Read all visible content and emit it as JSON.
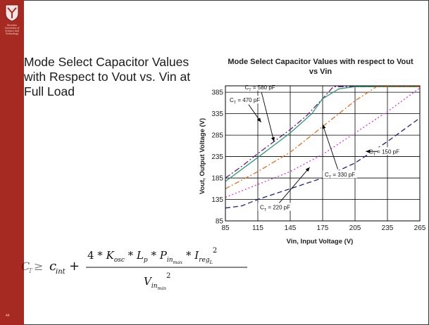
{
  "slide": {
    "heading": "Mode Select Capacitor Values with Respect to Vout vs. Vin at Full Load",
    "slide_number": "44",
    "logo_text": "Wrocław University of Science and Technology"
  },
  "formula": {
    "text": "C_T ≥ c_int + (4 * K_osc * L_p * P_in_max * I_reg_L^2) / V_in_min^2"
  },
  "colors": {
    "sidebar": "#a62a21",
    "grid": "#000000"
  },
  "chart_data": {
    "type": "line",
    "title": "Mode Select Capacitor Values with respect to Vout vs Vin",
    "xlabel": "Vin, Input Voltage (V)",
    "ylabel": "Vout, Output Voltage (V)",
    "xlim": [
      85,
      265
    ],
    "ylim": [
      85,
      400
    ],
    "xticks": [
      85,
      115,
      145,
      175,
      205,
      235,
      265
    ],
    "yticks": [
      85,
      135,
      185,
      235,
      285,
      335,
      385
    ],
    "grid": true,
    "series": [
      {
        "name": "C_T = 580 pF",
        "label_main": "C",
        "label_sub": "T",
        "label_rest": " = 580 pF",
        "color": "#6a1b9a",
        "dash": "8,3,2,3",
        "x": [
          85,
          100,
          115,
          130,
          145,
          160,
          175,
          185,
          205,
          235,
          265
        ],
        "y": [
          185,
          212,
          242,
          270,
          298,
          330,
          370,
          398,
          398,
          398,
          398
        ]
      },
      {
        "name": "C_T = 470 pF",
        "label_main": "C",
        "label_sub": "T",
        "label_rest": " = 470 pF",
        "color": "#2e9a6e",
        "dash": "",
        "x": [
          85,
          115,
          145,
          165,
          175,
          190,
          205,
          235,
          265
        ],
        "y": [
          177,
          233,
          290,
          335,
          370,
          393,
          398,
          398,
          398
        ]
      },
      {
        "name": "C_T = 330 pF",
        "label_main": "C",
        "label_sub": "T",
        "label_rest": " = 330 pF",
        "color": "#e07020",
        "dash": "7,3,2,3",
        "x": [
          85,
          115,
          145,
          175,
          205,
          225,
          245,
          265
        ],
        "y": [
          160,
          200,
          245,
          305,
          365,
          398,
          398,
          398
        ]
      },
      {
        "name": "C_T = 220 pF",
        "label_main": "C",
        "label_sub": "T",
        "label_rest": " = 220 pF",
        "color": "#d33ad3",
        "dash": "2,3",
        "x": [
          85,
          115,
          145,
          175,
          205,
          235,
          265
        ],
        "y": [
          140,
          170,
          200,
          240,
          290,
          340,
          395
        ]
      },
      {
        "name": "C_T = 150 pF",
        "label_main": "C",
        "label_sub": "T",
        "label_rest": " = 150 pF",
        "color": "#1a237e",
        "dash": "7,4",
        "x": [
          85,
          100,
          115,
          145,
          175,
          205,
          235,
          265
        ],
        "y": [
          115,
          120,
          135,
          160,
          185,
          220,
          270,
          325
        ]
      }
    ],
    "annotations": [
      {
        "series": 0,
        "text_x": 117,
        "text_y": 397,
        "arrow_x": 130,
        "arrow_y": 270
      },
      {
        "series": 1,
        "text_x": 103,
        "text_y": 367,
        "arrow_x": 118,
        "arrow_y": 315
      },
      {
        "series": 2,
        "text_x": 191,
        "text_y": 193,
        "arrow_x": 175,
        "arrow_y": 310
      },
      {
        "series": 3,
        "text_x": 131,
        "text_y": 117,
        "arrow_x": 163,
        "arrow_y": 210
      },
      {
        "series": 4,
        "text_x": 232,
        "text_y": 247,
        "arrow_x": 215,
        "arrow_y": 247
      }
    ]
  }
}
